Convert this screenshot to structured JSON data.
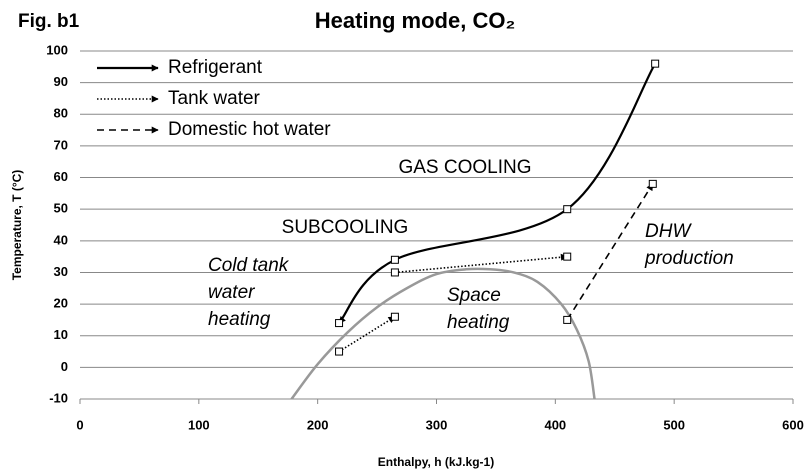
{
  "chart_data": {
    "type": "line",
    "fig_label": "Fig. b1",
    "title": "Heating mode, CO₂",
    "x_label": "Enthalpy, h (kJ.kg-1)",
    "y_label": "Temperature, T (°C)",
    "xlim": [
      0,
      600
    ],
    "xticks": [
      0,
      100,
      200,
      300,
      400,
      500,
      600
    ],
    "ylim": [
      -10,
      100
    ],
    "yticks": [
      -10,
      0,
      10,
      20,
      30,
      40,
      50,
      60,
      70,
      80,
      90,
      100
    ],
    "grid": true,
    "legend": "upper left",
    "series": [
      {
        "name": "Refrigerant",
        "color": "#000000",
        "style": "solid",
        "x": [
          484,
          410,
          265,
          218
        ],
        "values": [
          96,
          50,
          34,
          14
        ]
      },
      {
        "name": "Tank water",
        "color": "#000000",
        "style": "dotted",
        "x": [
          218,
          265,
          null,
          265,
          410
        ],
        "values": [
          5,
          16,
          null,
          30,
          35
        ]
      },
      {
        "name": "Domestic hot water",
        "color": "#000000",
        "style": "dashed",
        "x": [
          410,
          482
        ],
        "values": [
          15,
          58
        ]
      }
    ],
    "dome": {
      "color": "#999999",
      "x": [
        178,
        200,
        225,
        250,
        275,
        300,
        325,
        345,
        365,
        385,
        405,
        418,
        428,
        433
      ],
      "values": [
        -10,
        1,
        11,
        19,
        25,
        29.5,
        31,
        31,
        30,
        27,
        20,
        12,
        2,
        -10
      ]
    },
    "annotations": [
      {
        "lines": [
          "GAS COOLING"
        ]
      },
      {
        "lines": [
          "SUBCOOLING"
        ]
      },
      {
        "lines": [
          "Cold tank",
          "water",
          "heating"
        ]
      },
      {
        "lines": [
          "Space",
          "heating"
        ]
      },
      {
        "lines": [
          "DHW",
          "production"
        ]
      }
    ]
  }
}
